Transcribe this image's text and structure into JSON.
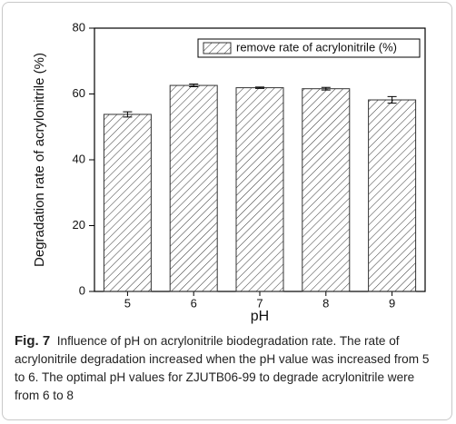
{
  "chart_data": {
    "type": "bar",
    "categories": [
      "5",
      "6",
      "7",
      "8",
      "9"
    ],
    "series": [
      {
        "name": "remove rate of acrylonitrile (%)",
        "color": "#333333",
        "values": [
          53.8,
          62.6,
          61.9,
          61.6,
          58.2
        ],
        "errors": [
          0.8,
          0.4,
          0.2,
          0.4,
          1.0
        ]
      }
    ],
    "ylim": [
      0,
      80
    ],
    "yticks": [
      0,
      20,
      40,
      60,
      80
    ],
    "xlabel": "pH",
    "ylabel": "Degradation rate of acrylonitrile (%)",
    "hatch": true,
    "legend": "upper right"
  },
  "caption": {
    "label": "Fig. 7",
    "text": "Influence of pH on acrylonitrile biodegradation rate. The rate of acrylonitrile degradation increased when the pH value was increased from 5 to 6. The optimal pH values for ZJUTB06-99 to degrade acrylonitrile were from 6 to 8"
  }
}
